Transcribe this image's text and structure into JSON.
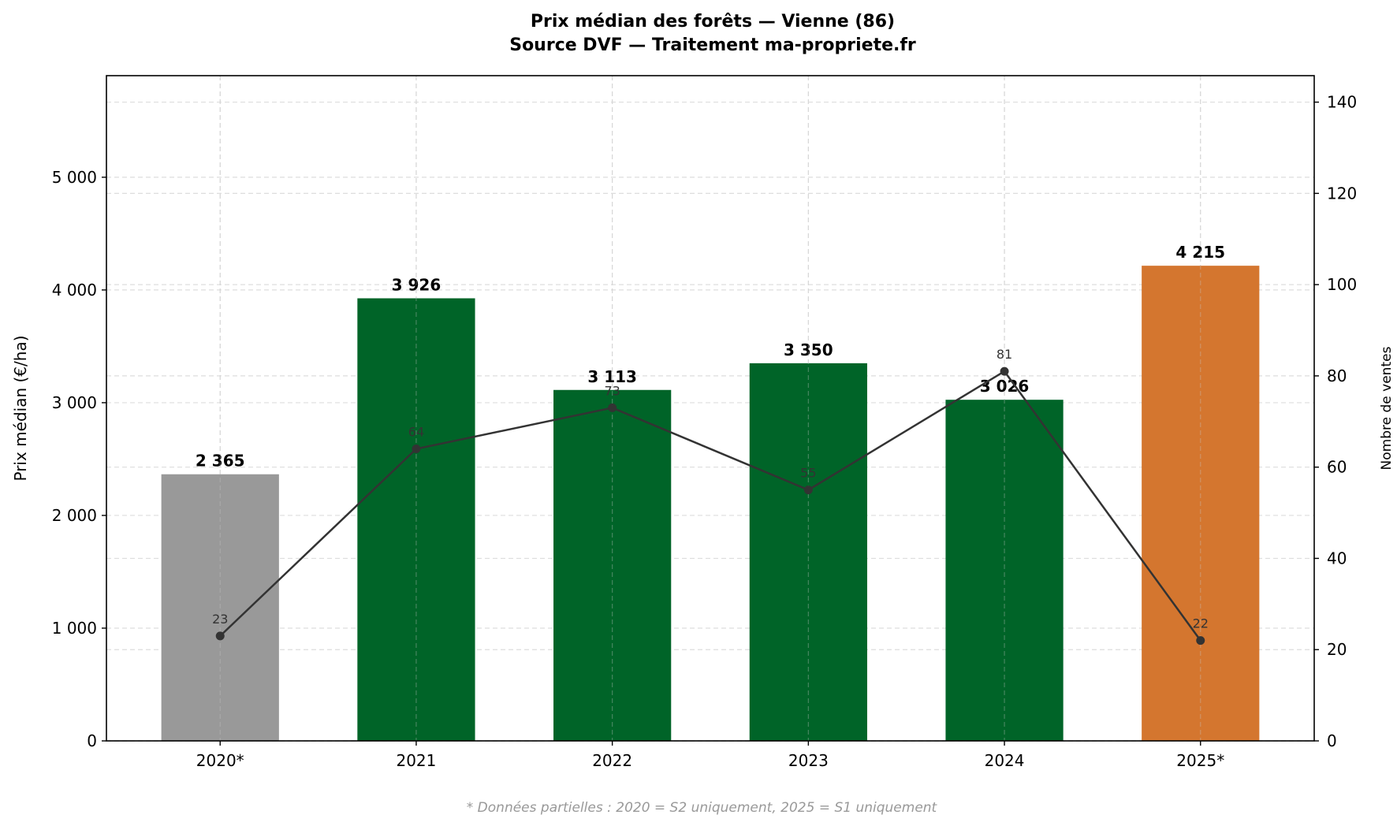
{
  "chart_data": {
    "type": "bar",
    "title_line1": "Prix médian des forêts — Vienne (86)",
    "title_line2": "Source DVF — Traitement ma-propriete.fr",
    "categories": [
      "2020*",
      "2021",
      "2022",
      "2023",
      "2024",
      "2025*"
    ],
    "series": [
      {
        "type": "bar",
        "axis": "left",
        "values": [
          2365,
          3926,
          3113,
          3350,
          3026,
          4215
        ],
        "labels": [
          "2 365",
          "3 926",
          "3 113",
          "3 350",
          "3 026",
          "4 215"
        ],
        "colors": [
          "#999999",
          "#006428",
          "#006428",
          "#006428",
          "#006428",
          "#d4762f"
        ]
      },
      {
        "type": "line",
        "axis": "right",
        "values": [
          23,
          64,
          73,
          55,
          81,
          22
        ],
        "labels": [
          "23",
          "64",
          "73",
          "55",
          "81",
          "22"
        ],
        "color": "#333333"
      }
    ],
    "ylabel": "Prix médian (€/ha)",
    "y2label": "Nombre de ventes",
    "ylim": [
      0,
      5901
    ],
    "y2lim": [
      0,
      145.8
    ],
    "yticks": [
      0,
      1000,
      2000,
      3000,
      4000,
      5000
    ],
    "ytick_labels": [
      "0",
      "1 000",
      "2 000",
      "3 000",
      "4 000",
      "5 000"
    ],
    "y2ticks": [
      0,
      20,
      40,
      60,
      80,
      100,
      120,
      140
    ],
    "y2tick_labels": [
      "0",
      "20",
      "40",
      "60",
      "80",
      "100",
      "120",
      "140"
    ],
    "grid": true,
    "footnote": "* Données partielles : 2020 = S2 uniquement, 2025 = S1 uniquement"
  }
}
